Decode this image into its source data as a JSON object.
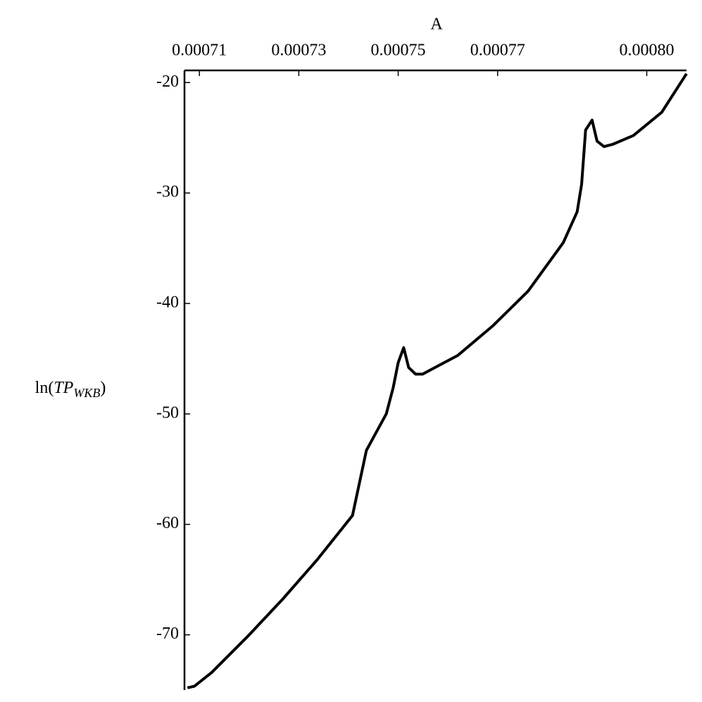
{
  "chart_data": {
    "type": "line",
    "xlabel": "A",
    "ylabel": [
      "ln(",
      "TP",
      "WKB",
      ")"
    ],
    "x": [
      0.0007076,
      0.000709,
      0.0007125,
      0.0007196,
      0.0007267,
      0.0007337,
      0.0007408,
      0.0007436,
      0.0007476,
      0.000749,
      0.00075,
      0.0007511,
      0.0007521,
      0.0007535,
      0.0007549,
      0.000762,
      0.0007691,
      0.0007761,
      0.0007832,
      0.000786,
      0.0007869,
      0.0007877,
      0.000789,
      0.00079,
      0.0007914,
      0.0007931,
      0.0007973,
      0.000803,
      0.000808
    ],
    "series": [
      {
        "color": "#000000",
        "values": [
          -74.8,
          -74.65,
          -73.4,
          -70.2,
          -66.8,
          -63.2,
          -59.2,
          -53.3,
          -50,
          -47.6,
          -45.35,
          -44.0,
          -45.8,
          -46.4,
          -46.4,
          -44.7,
          -42.0,
          -38.9,
          -34.5,
          -31.7,
          -29.2,
          -24.3,
          -23.4,
          -25.3,
          -25.8,
          -25.6,
          -24.8,
          -22.7,
          -19.2
        ]
      }
    ],
    "xlim": [
      0.000707,
      0.000808
    ],
    "ylim": [
      -75,
      -18.9
    ],
    "xticks": [
      0.00071,
      0.00073,
      0.00075,
      0.00077,
      {
        "value": 0.0008,
        "label": "0.00080"
      }
    ],
    "yticks": [
      -20,
      -30,
      -40,
      -50,
      -60,
      -70
    ]
  }
}
